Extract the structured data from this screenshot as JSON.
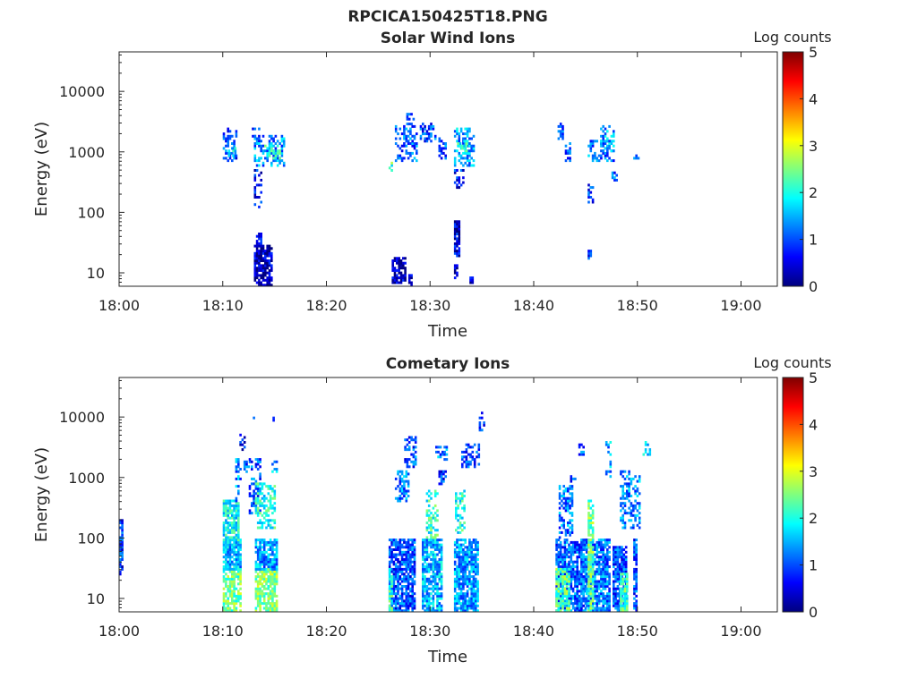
{
  "figure": {
    "file_title": "RPCICA150425T18.PNG",
    "colorbar_title": "Log counts",
    "colorbar_ticks": [
      "0",
      "1",
      "2",
      "3",
      "4",
      "5"
    ],
    "colormap": [
      "#00007f",
      "#0000ff",
      "#007fff",
      "#00ffff",
      "#7fff7f",
      "#ffff00",
      "#ff7f00",
      "#ff0000",
      "#7f0000"
    ]
  },
  "chart_data": [
    {
      "type": "heatmap",
      "title": "Solar Wind Ions",
      "xlabel": "Time",
      "ylabel": "Energy (eV)",
      "x_ticks": [
        "18:00",
        "18:10",
        "18:20",
        "18:30",
        "18:40",
        "18:50",
        "19:00"
      ],
      "y_ticks": [
        "10",
        "100",
        "1000",
        "10000"
      ],
      "y_scale": "log",
      "ylim_ev": [
        6,
        45000
      ],
      "xlim_min": [
        0,
        63.5
      ],
      "clim": [
        0,
        5
      ],
      "patches": [
        {
          "t": [
            10.0,
            11.2
          ],
          "e": [
            700,
            2500
          ],
          "c": 1.0
        },
        {
          "t": [
            10.5,
            11.2
          ],
          "e": [
            900,
            1100
          ],
          "c": 1.8
        },
        {
          "t": [
            12.8,
            13.4
          ],
          "e": [
            1500,
            2500
          ],
          "c": 1.0
        },
        {
          "t": [
            13.0,
            15.9
          ],
          "e": [
            600,
            1800
          ],
          "c": 1.3
        },
        {
          "t": [
            14.0,
            15.5
          ],
          "e": [
            800,
            1200
          ],
          "c": 2.0
        },
        {
          "t": [
            13.0,
            13.6
          ],
          "e": [
            120,
            500
          ],
          "c": 0.6
        },
        {
          "t": [
            13.2,
            13.7
          ],
          "e": [
            30,
            45
          ],
          "c": 0.5
        },
        {
          "t": [
            13.0,
            14.6
          ],
          "e": [
            6,
            28
          ],
          "c": 0.3
        },
        {
          "t": [
            26.0,
            26.3
          ],
          "e": [
            500,
            650
          ],
          "c": 2.2
        },
        {
          "t": [
            26.6,
            28.6
          ],
          "e": [
            700,
            2600
          ],
          "c": 1.1
        },
        {
          "t": [
            27.7,
            28.3
          ],
          "e": [
            3000,
            4300
          ],
          "c": 0.8
        },
        {
          "t": [
            29.0,
            30.5
          ],
          "e": [
            1500,
            3000
          ],
          "c": 1.0
        },
        {
          "t": [
            30.8,
            31.5
          ],
          "e": [
            800,
            1700
          ],
          "c": 1.0
        },
        {
          "t": [
            32.3,
            34.3
          ],
          "e": [
            600,
            2500
          ],
          "c": 1.4
        },
        {
          "t": [
            32.6,
            33.6
          ],
          "e": [
            1000,
            1500
          ],
          "c": 2.1
        },
        {
          "t": [
            32.3,
            33.3
          ],
          "e": [
            250,
            500
          ],
          "c": 0.7
        },
        {
          "t": [
            32.3,
            32.8
          ],
          "e": [
            20,
            70
          ],
          "c": 0.5
        },
        {
          "t": [
            32.3,
            32.7
          ],
          "e": [
            8,
            13
          ],
          "c": 0.2
        },
        {
          "t": [
            26.3,
            27.5
          ],
          "e": [
            7,
            18
          ],
          "c": 0.3
        },
        {
          "t": [
            27.9,
            28.2
          ],
          "e": [
            6,
            9
          ],
          "c": 0.4
        },
        {
          "t": [
            33.8,
            34.1
          ],
          "e": [
            6,
            8
          ],
          "c": 0.4
        },
        {
          "t": [
            42.3,
            42.9
          ],
          "e": [
            1700,
            2800
          ],
          "c": 1.0
        },
        {
          "t": [
            43.0,
            43.5
          ],
          "e": [
            700,
            1400
          ],
          "c": 1.0
        },
        {
          "t": [
            45.2,
            47.7
          ],
          "e": [
            700,
            1500
          ],
          "c": 1.2
        },
        {
          "t": [
            46.4,
            47.8
          ],
          "e": [
            1000,
            2600
          ],
          "c": 1.4
        },
        {
          "t": [
            45.2,
            45.8
          ],
          "e": [
            150,
            280
          ],
          "c": 0.8
        },
        {
          "t": [
            45.2,
            45.6
          ],
          "e": [
            18,
            24
          ],
          "c": 0.9
        },
        {
          "t": [
            47.5,
            48.0
          ],
          "e": [
            330,
            450
          ],
          "c": 1.0
        },
        {
          "t": [
            49.6,
            50.1
          ],
          "e": [
            700,
            950
          ],
          "c": 1.2
        }
      ]
    },
    {
      "type": "heatmap",
      "title": "Cometary Ions",
      "xlabel": "Time",
      "ylabel": "Energy (eV)",
      "x_ticks": [
        "18:00",
        "18:10",
        "18:20",
        "18:30",
        "18:40",
        "18:50",
        "19:00"
      ],
      "y_ticks": [
        "10",
        "100",
        "1000",
        "10000"
      ],
      "y_scale": "log",
      "ylim_ev": [
        6,
        45000
      ],
      "xlim_min": [
        0,
        63.5
      ],
      "clim": [
        0,
        5
      ],
      "patches": [
        {
          "t": [
            0.0,
            0.3
          ],
          "e": [
            25,
            200
          ],
          "c": 0.8
        },
        {
          "t": [
            10.0,
            11.7
          ],
          "e": [
            6,
            30
          ],
          "c": 2.4
        },
        {
          "t": [
            10.0,
            11.7
          ],
          "e": [
            30,
            90
          ],
          "c": 1.5
        },
        {
          "t": [
            10.0,
            11.4
          ],
          "e": [
            90,
            400
          ],
          "c": 1.9
        },
        {
          "t": [
            11.2,
            11.6
          ],
          "e": [
            400,
            2000
          ],
          "c": 1.3
        },
        {
          "t": [
            11.6,
            12.0
          ],
          "e": [
            3000,
            5000
          ],
          "c": 0.6
        },
        {
          "t": [
            12.0,
            12.5
          ],
          "e": [
            1200,
            1800
          ],
          "c": 1.1
        },
        {
          "t": [
            12.5,
            13.5
          ],
          "e": [
            250,
            2000
          ],
          "c": 1.0
        },
        {
          "t": [
            13.1,
            15.2
          ],
          "e": [
            6,
            30
          ],
          "c": 2.5
        },
        {
          "t": [
            13.1,
            15.2
          ],
          "e": [
            30,
            90
          ],
          "c": 1.4
        },
        {
          "t": [
            13.1,
            15.0
          ],
          "e": [
            150,
            800
          ],
          "c": 2.0
        },
        {
          "t": [
            14.7,
            15.2
          ],
          "e": [
            1200,
            1800
          ],
          "c": 1.5
        },
        {
          "t": [
            12.7,
            13.0
          ],
          "e": [
            8500,
            9500
          ],
          "c": 0.9
        },
        {
          "t": [
            14.8,
            15.0
          ],
          "e": [
            8500,
            9500
          ],
          "c": 0.9
        },
        {
          "t": [
            26.0,
            28.4
          ],
          "e": [
            6,
            90
          ],
          "c": 1.0
        },
        {
          "t": [
            26.0,
            26.4
          ],
          "e": [
            6,
            30
          ],
          "c": 2.2
        },
        {
          "t": [
            26.6,
            27.8
          ],
          "e": [
            400,
            1200
          ],
          "c": 1.2
        },
        {
          "t": [
            27.5,
            28.6
          ],
          "e": [
            1500,
            4500
          ],
          "c": 1.0
        },
        {
          "t": [
            29.2,
            31.0
          ],
          "e": [
            6,
            90
          ],
          "c": 1.5
        },
        {
          "t": [
            29.6,
            30.6
          ],
          "e": [
            100,
            600
          ],
          "c": 2.1
        },
        {
          "t": [
            30.5,
            31.5
          ],
          "e": [
            2000,
            3200
          ],
          "c": 1.2
        },
        {
          "t": [
            30.8,
            31.5
          ],
          "e": [
            800,
            1200
          ],
          "c": 0.9
        },
        {
          "t": [
            32.3,
            34.7
          ],
          "e": [
            6,
            90
          ],
          "c": 1.4
        },
        {
          "t": [
            32.4,
            33.4
          ],
          "e": [
            120,
            600
          ],
          "c": 2.0
        },
        {
          "t": [
            33.0,
            34.7
          ],
          "e": [
            1500,
            3500
          ],
          "c": 1.0
        },
        {
          "t": [
            34.7,
            35.3
          ],
          "e": [
            6000,
            12000
          ],
          "c": 0.7
        },
        {
          "t": [
            42.1,
            45.0
          ],
          "e": [
            6,
            90
          ],
          "c": 1.1
        },
        {
          "t": [
            42.1,
            43.4
          ],
          "e": [
            6,
            30
          ],
          "c": 2.3
        },
        {
          "t": [
            42.4,
            43.8
          ],
          "e": [
            100,
            700
          ],
          "c": 1.2
        },
        {
          "t": [
            43.5,
            44.0
          ],
          "e": [
            700,
            1000
          ],
          "c": 0.8
        },
        {
          "t": [
            44.3,
            44.8
          ],
          "e": [
            2500,
            4000
          ],
          "c": 1.0
        },
        {
          "t": [
            45.0,
            47.4
          ],
          "e": [
            6,
            90
          ],
          "c": 1.2
        },
        {
          "t": [
            45.2,
            45.8
          ],
          "e": [
            6,
            400
          ],
          "c": 2.4
        },
        {
          "t": [
            46.9,
            47.4
          ],
          "e": [
            1000,
            4000
          ],
          "c": 1.4
        },
        {
          "t": [
            47.6,
            49.0
          ],
          "e": [
            6,
            70
          ],
          "c": 1.0
        },
        {
          "t": [
            48.3,
            49.1
          ],
          "e": [
            6,
            25
          ],
          "c": 2.2
        },
        {
          "t": [
            48.3,
            50.2
          ],
          "e": [
            150,
            1200
          ],
          "c": 1.3
        },
        {
          "t": [
            49.6,
            50.0
          ],
          "e": [
            6,
            90
          ],
          "c": 1.0
        },
        {
          "t": [
            50.5,
            51.3
          ],
          "e": [
            2500,
            4000
          ],
          "c": 1.5
        }
      ]
    }
  ]
}
